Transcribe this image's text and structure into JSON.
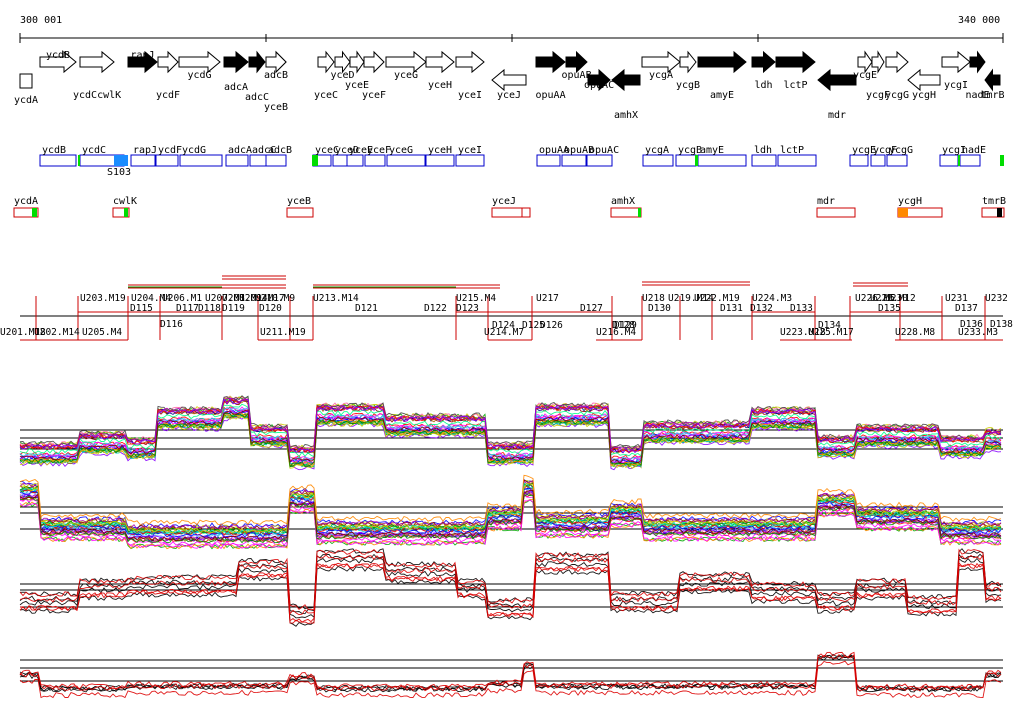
{
  "coordinates": {
    "start_label": "300 001",
    "end_label": "340 000",
    "start": 300001,
    "end": 340000
  },
  "colors": {
    "strand_fwd": "#ffffff",
    "strand_rev": "#000000",
    "box_blue": "#0000cc",
    "fill_blue": "#1a8cff",
    "red": "#cc0000",
    "green": "#00dd00",
    "orange": "#ff8800",
    "black": "#000000"
  },
  "genes_top": [
    {
      "name": "ycdA",
      "strand": "box"
    },
    {
      "name": "ycdB",
      "strand": "+"
    },
    {
      "name": "ycdCcwlK",
      "strand": "+"
    },
    {
      "name": "rapJ",
      "strand": "+"
    },
    {
      "name": "ycdF",
      "strand": "+"
    },
    {
      "name": "ycdG",
      "strand": "+"
    },
    {
      "name": "adcA",
      "strand": "+"
    },
    {
      "name": "adcC",
      "strand": "+"
    },
    {
      "name": "adcB",
      "strand": "+"
    },
    {
      "name": "yceB",
      "strand": "+"
    },
    {
      "name": "yceC",
      "strand": "+"
    },
    {
      "name": "yceD",
      "strand": "+"
    },
    {
      "name": "yceE",
      "strand": "+"
    },
    {
      "name": "yceF",
      "strand": "+"
    },
    {
      "name": "yceG",
      "strand": "+"
    },
    {
      "name": "yceH",
      "strand": "+"
    },
    {
      "name": "yceI",
      "strand": "+"
    },
    {
      "name": "yceJ",
      "strand": "-"
    },
    {
      "name": "opuAA",
      "strand": "+"
    },
    {
      "name": "opuAB",
      "strand": "+"
    },
    {
      "name": "opuAC",
      "strand": "+"
    },
    {
      "name": "amhX",
      "strand": "-"
    },
    {
      "name": "ycgA",
      "strand": "+"
    },
    {
      "name": "ycgB",
      "strand": "+"
    },
    {
      "name": "amyE",
      "strand": "+"
    },
    {
      "name": "ldh",
      "strand": "+"
    },
    {
      "name": "lctP",
      "strand": "+"
    },
    {
      "name": "mdr",
      "strand": "-"
    },
    {
      "name": "ycgE",
      "strand": "+"
    },
    {
      "name": "ycgF",
      "strand": "+"
    },
    {
      "name": "ycgG",
      "strand": "+"
    },
    {
      "name": "ycgH",
      "strand": "-"
    },
    {
      "name": "ycgI",
      "strand": "+"
    },
    {
      "name": "nadE",
      "strand": "+"
    },
    {
      "name": "tmrB",
      "strand": "-"
    }
  ],
  "operons_blue": [
    "ycdB",
    "ycdC",
    "rapJ",
    "ycdF",
    "ycdG",
    "adcA",
    "adcC",
    "adcB",
    "yceC",
    "yceD",
    "yceE",
    "yceF",
    "yceG",
    "yceH",
    "yceI",
    "opuAA",
    "opuAB",
    "opuAC",
    "ycgA",
    "ycgB",
    "amyE",
    "ldh",
    "lctP",
    "ycgE",
    "ycgF",
    "ycgG",
    "ycgI",
    "nadE"
  ],
  "operon_extra_label": "S103",
  "operons_red": [
    "ycdA",
    "cwlK",
    "yceB",
    "yceJ",
    "amhX",
    "mdr",
    "ycgH",
    "tmrB"
  ],
  "segments_upper": [
    "U203.M19",
    "U204.M4",
    "U206.M1",
    "U207.M1",
    "U208.M14",
    "U209.M17",
    "U210.M9",
    "U213.M14",
    "U215.M4",
    "U217",
    "U218",
    "U219.M14",
    "U222.M19",
    "U224.M3",
    "U226.M5",
    "U229.M12",
    "U230",
    "U231",
    "U232"
  ],
  "segments_mid": [
    "D115",
    "D117",
    "D118",
    "D119",
    "D120",
    "D121",
    "D122",
    "D123",
    "D127",
    "D130",
    "D131",
    "D132",
    "D133",
    "D135",
    "D137"
  ],
  "segments_lower": [
    "U201.M18",
    "U202.M14",
    "U205.M4",
    "D116",
    "U211.M19",
    "D124",
    "D125",
    "D126",
    "U214.M7",
    "D128",
    "D129",
    "U216.M4",
    "D134",
    "U223.M18",
    "U225.M17",
    "U228.M8",
    "U233.M3",
    "D136",
    "D138"
  ]
}
